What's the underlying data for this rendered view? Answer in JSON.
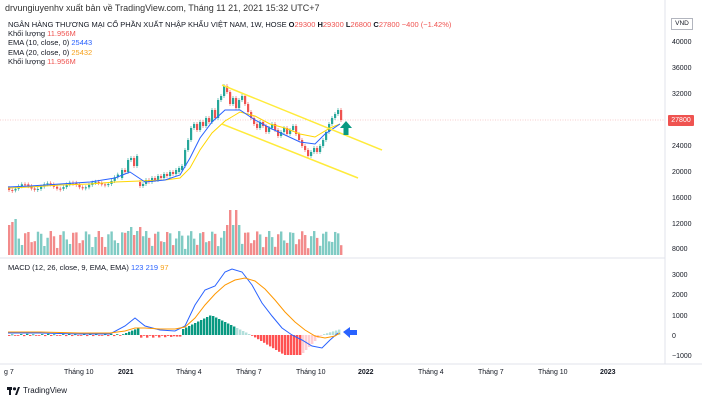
{
  "header": {
    "author_line": "drvungiuyenhv xuất bản về TradingView.com, Tháng 11 21, 2021 15:32 UTC+7",
    "symbol_title": "NGÂN HÀNG THƯƠNG MẠI CỔ PHẦN XUẤT NHẬP KHẨU VIỆT NAM, 1W, HOSE",
    "ohlc": {
      "o_label": "O",
      "o": "29300",
      "h_label": "H",
      "h": "29300",
      "l_label": "L",
      "l": "26800",
      "c_label": "C",
      "c": "27800",
      "change": "−400 (−1.42%)"
    }
  },
  "legend": {
    "volume_label": "Khối lượng",
    "volume_value": "11.956M",
    "ema10_label": "EMA (10, close, 0)",
    "ema10_value": "25443",
    "ema20_label": "EMA (20, close, 0)",
    "ema20_value": "25432",
    "volume2_label": "Khối lượng",
    "volume2_value": "11.956M"
  },
  "macd_legend": {
    "label": "MACD (12, 26, close, 9, EMA, EMA)",
    "v1": "123",
    "v2": "219",
    "v3": "97"
  },
  "price_axis": {
    "currency": "VND",
    "ticks": [
      "40000",
      "36000",
      "32000",
      "28000",
      "24000",
      "20000",
      "16000",
      "12000",
      "8000"
    ],
    "last_price": "27800"
  },
  "macd_axis": {
    "ticks": [
      "3000",
      "2000",
      "1000",
      "0",
      "−1000"
    ]
  },
  "time_axis": {
    "ticks": [
      "g 7",
      "Tháng 10",
      "2021",
      "Tháng 4",
      "Tháng 7",
      "Tháng 10",
      "2022",
      "Tháng 4",
      "Tháng 7",
      "Tháng 10",
      "2023"
    ]
  },
  "footer": {
    "brand": "TradingView"
  },
  "colors": {
    "up": "#26a69a",
    "down": "#ef5350",
    "ema10": "#2962ff",
    "ema20": "#ffd600",
    "channel": "#ffeb3b",
    "macd_line": "#2962ff",
    "signal_line": "#ff9800",
    "annotation_up": "#089981",
    "annotation_left": "#2962ff"
  }
}
